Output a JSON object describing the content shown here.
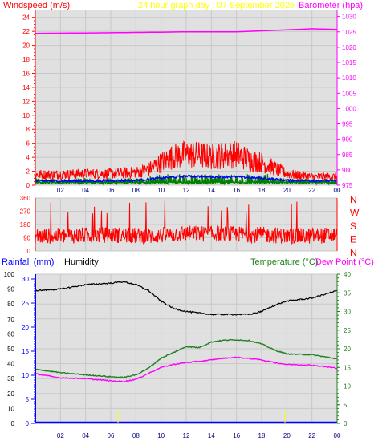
{
  "header": {
    "windspeed_label": "Windspeed (m/s)",
    "title": "24 hour graph day : 07 September 2025",
    "barometer_label": "Barometer (hpa)"
  },
  "direction_labels": [
    "N",
    "W",
    "S",
    "E",
    "N"
  ],
  "lower_header": {
    "rainfall_label": "Rainfall (mm)",
    "humidity_label": "Humidity",
    "temperature_label": "Temperature (°C)",
    "dewpoint_label": "Dew Point (°C)"
  },
  "colors": {
    "wind": "#ff0000",
    "avg_wind": "#0000ff",
    "gust_base": "#008000",
    "barometer": "#ff00ff",
    "humidity": "#000000",
    "temperature": "#208020",
    "dewpoint": "#ff00ff",
    "rainfall": "#0000ff",
    "title": "#ffff00",
    "plot_bg": "#e0e0e0"
  },
  "chart_data": [
    {
      "type": "line",
      "title": "24 hour graph day : 07 September 2025",
      "ylabel": "Windspeed (m/s)",
      "y2label": "Barometer (hpa)",
      "x_ticks": [
        "02",
        "04",
        "06",
        "08",
        "10",
        "12",
        "14",
        "16",
        "18",
        "20",
        "22",
        "00"
      ],
      "ylim": [
        0,
        25
      ],
      "y_ticks": [
        "0",
        "2",
        "4",
        "6",
        "8",
        "10",
        "12",
        "14",
        "16",
        "18",
        "20",
        "22",
        "24"
      ],
      "y2lim": [
        975,
        1032
      ],
      "y2_ticks": [
        "975",
        "980",
        "985",
        "990",
        "995",
        "1000",
        "1005",
        "1010",
        "1015",
        "1020",
        "1025",
        "1030"
      ],
      "series": [
        {
          "name": "Windspeed (m/s)",
          "x": [
            0,
            2,
            4,
            6,
            8,
            9,
            10,
            11,
            12,
            13,
            14,
            15,
            16,
            17,
            18,
            19,
            20,
            22,
            24
          ],
          "y": [
            1.5,
            1.5,
            1.6,
            1.6,
            1.8,
            2.2,
            3.2,
            4.0,
            4.3,
            4.2,
            4.0,
            4.2,
            4.3,
            3.6,
            3.2,
            2.4,
            1.6,
            1.2,
            1.2
          ]
        },
        {
          "name": "Average wind",
          "x": [
            0,
            4,
            8,
            10,
            12,
            14,
            16,
            18,
            20,
            24
          ],
          "y": [
            0.6,
            0.6,
            0.7,
            1.0,
            1.3,
            1.2,
            1.2,
            1.0,
            0.7,
            0.6
          ]
        },
        {
          "name": "Barometer (hpa)",
          "x": [
            0,
            6,
            12,
            16,
            22,
            24
          ],
          "y": [
            1024.5,
            1024.7,
            1025.0,
            1025.0,
            1026.0,
            1025.8
          ]
        }
      ],
      "grid": true
    },
    {
      "type": "line",
      "ylim": [
        0,
        360
      ],
      "y_ticks": [
        "0",
        "90",
        "180",
        "270",
        "360"
      ],
      "series": [
        {
          "name": "Wind direction",
          "x": [
            0,
            3,
            6,
            9,
            12,
            15,
            18,
            21,
            24
          ],
          "y": [
            100,
            105,
            110,
            100,
            120,
            115,
            110,
            100,
            110
          ]
        }
      ],
      "grid": true
    },
    {
      "type": "line",
      "x_ticks": [
        "02",
        "04",
        "06",
        "08",
        "10",
        "12",
        "14",
        "16",
        "18",
        "20",
        "22",
        "00"
      ],
      "ylim": [
        0,
        100
      ],
      "y_ticks": [
        "0",
        "10",
        "20",
        "30",
        "40",
        "50",
        "60",
        "70",
        "80",
        "90",
        "100"
      ],
      "rain_ticks": [
        "0",
        "5",
        "10",
        "15",
        "20",
        "25",
        "30"
      ],
      "y2lim": [
        0,
        40
      ],
      "y2_ticks": [
        "0",
        "5",
        "10",
        "15",
        "20",
        "25",
        "30",
        "35",
        "40"
      ],
      "series": [
        {
          "name": "Humidity",
          "x": [
            0,
            2,
            4,
            6,
            7,
            8,
            9,
            10,
            11,
            12,
            13,
            14,
            15,
            16,
            17,
            18,
            19,
            20,
            22,
            24
          ],
          "y": [
            89,
            90,
            93,
            94,
            95,
            93,
            89,
            82,
            77,
            75,
            74,
            73,
            73,
            73,
            73,
            75,
            79,
            82,
            84,
            89
          ]
        },
        {
          "name": "Temperature (°C)",
          "x": [
            0,
            2,
            4,
            6,
            7,
            8,
            9,
            10,
            11,
            12,
            13,
            14,
            15,
            16,
            17,
            18,
            19,
            20,
            22,
            24
          ],
          "y": [
            14.5,
            13.6,
            13.0,
            12.5,
            12.3,
            13.0,
            14.8,
            17.5,
            19.0,
            20.6,
            20.3,
            21.8,
            22.3,
            22.4,
            22.2,
            21.3,
            19.7,
            18.6,
            18.4,
            17.3
          ]
        },
        {
          "name": "Dew Point (°C)",
          "x": [
            0,
            2,
            4,
            6,
            7,
            8,
            9,
            10,
            11,
            12,
            13,
            14,
            15,
            16,
            17,
            18,
            19,
            20,
            22,
            24
          ],
          "y": [
            13.3,
            12.2,
            12.0,
            11.4,
            11.2,
            11.8,
            13.4,
            15.0,
            15.8,
            16.3,
            16.6,
            17.0,
            17.5,
            17.7,
            17.4,
            17.0,
            16.3,
            15.8,
            15.6,
            14.8
          ]
        },
        {
          "name": "Rainfall (mm)",
          "x": [
            0,
            24
          ],
          "y": [
            0,
            0
          ]
        }
      ],
      "grid": true
    }
  ]
}
